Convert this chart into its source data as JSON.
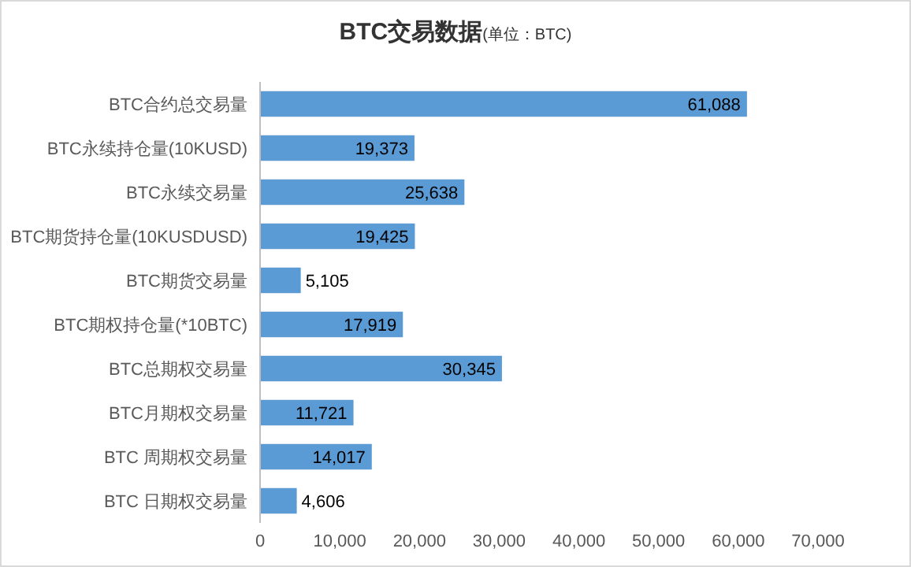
{
  "chart_data": {
    "type": "bar",
    "orientation": "horizontal",
    "title": "BTC交易数据",
    "subtitle": "(单位：BTC)",
    "categories": [
      "BTC合约总交易量",
      "BTC永续持仓量(10KUSD)",
      "BTC永续交易量",
      "BTC期货持仓量(10KUSDUSD)",
      "BTC期货交易量",
      "BTC期权持仓量(*10BTC)",
      "BTC总期权交易量",
      "BTC月期权交易量",
      "BTC 周期权交易量",
      "BTC 日期权交易量"
    ],
    "values": [
      61088,
      19373,
      25638,
      19425,
      5105,
      17919,
      30345,
      11721,
      14017,
      4606
    ],
    "color": "#5b9bd5",
    "xlim": [
      0,
      70000
    ],
    "xticks": [
      {
        "value": 0,
        "label": "0"
      },
      {
        "value": 10000,
        "label": "10,000"
      },
      {
        "value": 20000,
        "label": "20,000"
      },
      {
        "value": 30000,
        "label": "30,000"
      },
      {
        "value": 40000,
        "label": "40,000"
      },
      {
        "value": 50000,
        "label": "50,000"
      },
      {
        "value": 60000,
        "label": "60,000"
      },
      {
        "value": 70000,
        "label": "70,000"
      }
    ],
    "value_labels": [
      "61,088",
      "19,373",
      "25,638",
      "19,425",
      "5,105",
      "17,919",
      "30,345",
      "11,721",
      "14,017",
      "4,606"
    ],
    "grid": false
  }
}
